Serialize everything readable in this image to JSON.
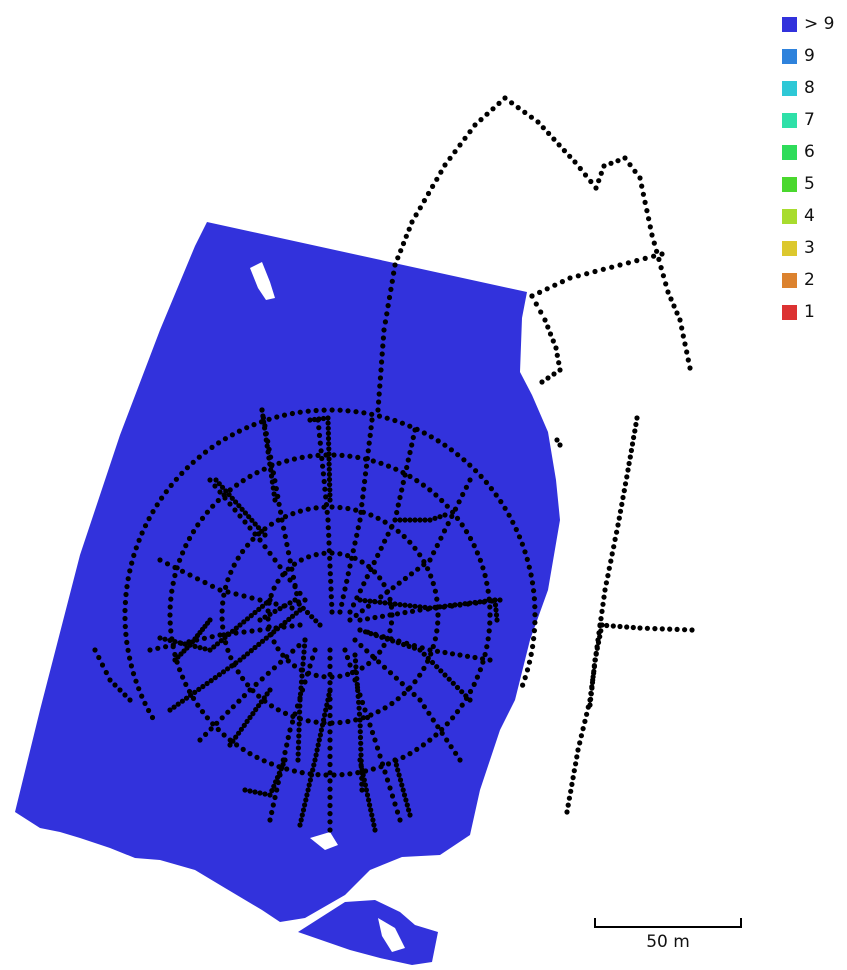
{
  "map": {
    "coverage_color": "#3232dc",
    "point_color": "#000000"
  },
  "legend": {
    "items": [
      {
        "label": "> 9",
        "color": "#3232dc"
      },
      {
        "label": "9",
        "color": "#2e82dc"
      },
      {
        "label": "8",
        "color": "#2ec8d6"
      },
      {
        "label": "7",
        "color": "#2ee0a8"
      },
      {
        "label": "6",
        "color": "#2edc5a"
      },
      {
        "label": "5",
        "color": "#4ad82e"
      },
      {
        "label": "4",
        "color": "#a8dc2e"
      },
      {
        "label": "3",
        "color": "#dcc82e"
      },
      {
        "label": "2",
        "color": "#dc822e"
      },
      {
        "label": "1",
        "color": "#dc3232"
      }
    ]
  },
  "scale": {
    "label": "50 m"
  }
}
